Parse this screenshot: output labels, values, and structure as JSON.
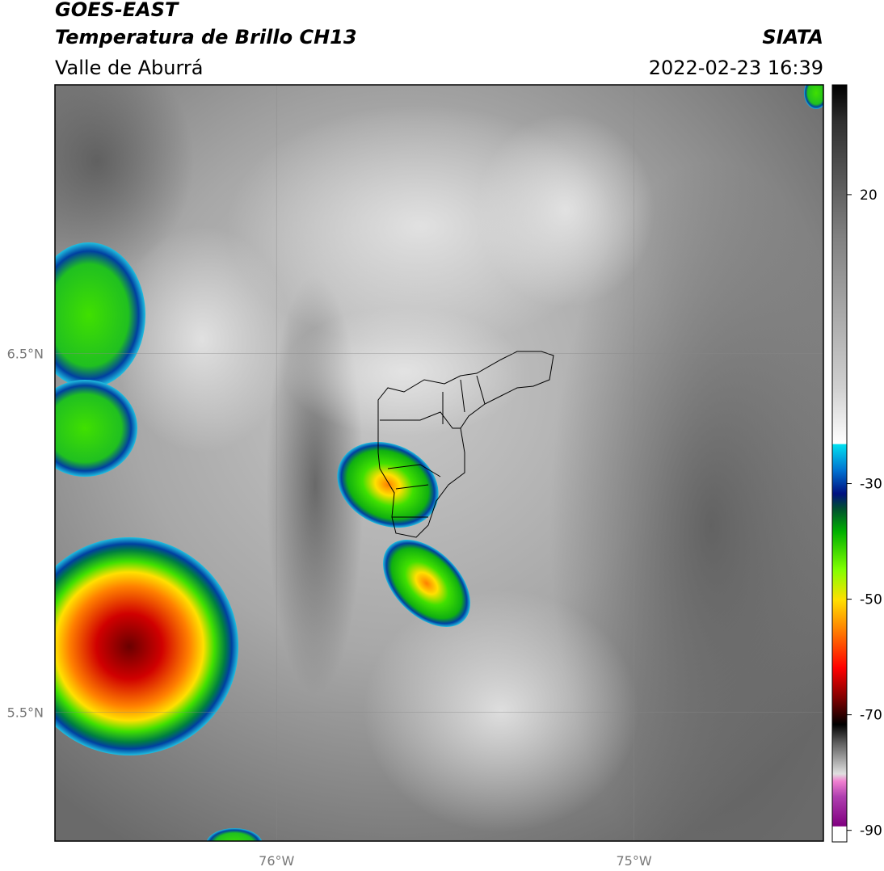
{
  "header": {
    "title": "GOES-EAST",
    "subtitle": "Temperatura de Brillo CH13",
    "region": "Valle de Aburrá",
    "source": "SIATA",
    "datetime": "2022-02-23 16:39"
  },
  "map": {
    "xlim": [
      -76.62,
      -74.47
    ],
    "ylim": [
      5.14,
      7.25
    ],
    "xticks": [
      {
        "value": -76,
        "label": "76°W"
      },
      {
        "value": -75,
        "label": "75°W"
      }
    ],
    "yticks": [
      {
        "value": 6.5,
        "label": "6.5°N"
      },
      {
        "value": 5.5,
        "label": "5.5°N"
      }
    ]
  },
  "colorbar": {
    "lim": [
      -92,
      39
    ],
    "ticks": [
      20,
      -30,
      -50,
      -70,
      -90
    ]
  }
}
